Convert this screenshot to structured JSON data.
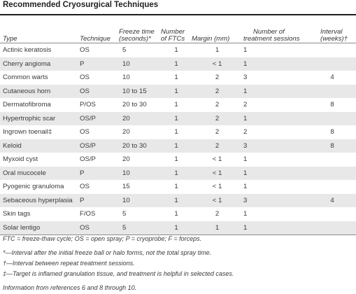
{
  "title": "Recommended Cryosurgical Techniques",
  "headers": {
    "type": "Type",
    "technique": "Technique",
    "freeze_line1": "Freeze time",
    "freeze_line2": "(seconds)*",
    "ftc_line1": "Number",
    "ftc_line2": "of FTCs",
    "margin": "Margin (mm)",
    "sessions_line1": "Number of",
    "sessions_line2": "treatment sessions",
    "interval_line1": "Interval",
    "interval_line2": "(weeks)†"
  },
  "rows": [
    {
      "type": "Actinic keratosis",
      "technique": "OS",
      "freeze": "5",
      "ftc": "1",
      "margin": "1",
      "sessions": "1",
      "interval": ""
    },
    {
      "type": "Cherry angioma",
      "technique": "P",
      "freeze": "10",
      "ftc": "1",
      "margin": "< 1",
      "sessions": "1",
      "interval": ""
    },
    {
      "type": "Common warts",
      "technique": "OS",
      "freeze": "10",
      "ftc": "1",
      "margin": "2",
      "sessions": "3",
      "interval": "4"
    },
    {
      "type": "Cutaneous horn",
      "technique": "OS",
      "freeze": "10 to 15",
      "ftc": "1",
      "margin": "2",
      "sessions": "1",
      "interval": ""
    },
    {
      "type": "Dermatofibroma",
      "technique": "P/OS",
      "freeze": "20 to 30",
      "ftc": "1",
      "margin": "2",
      "sessions": "2",
      "interval": "8"
    },
    {
      "type": "Hypertrophic scar",
      "technique": "OS/P",
      "freeze": "20",
      "ftc": "1",
      "margin": "2",
      "sessions": "1",
      "interval": ""
    },
    {
      "type": "Ingrown toenail‡",
      "technique": "OS",
      "freeze": "20",
      "ftc": "1",
      "margin": "2",
      "sessions": "2",
      "interval": "8"
    },
    {
      "type": "Keloid",
      "technique": "OS/P",
      "freeze": "20 to 30",
      "ftc": "1",
      "margin": "2",
      "sessions": "3",
      "interval": "8"
    },
    {
      "type": "Myxoid cyst",
      "technique": "OS/P",
      "freeze": "20",
      "ftc": "1",
      "margin": "< 1",
      "sessions": "1",
      "interval": ""
    },
    {
      "type": "Oral mucocele",
      "technique": "P",
      "freeze": "10",
      "ftc": "1",
      "margin": "< 1",
      "sessions": "1",
      "interval": ""
    },
    {
      "type": "Pyogenic granuloma",
      "technique": "OS",
      "freeze": "15",
      "ftc": "1",
      "margin": "< 1",
      "sessions": "1",
      "interval": ""
    },
    {
      "type": "Sebaceous hyperplasia",
      "technique": "P",
      "freeze": "10",
      "ftc": "1",
      "margin": "< 1",
      "sessions": "3",
      "interval": "4"
    },
    {
      "type": "Skin tags",
      "technique": "F/OS",
      "freeze": "5",
      "ftc": "1",
      "margin": "2",
      "sessions": "1",
      "interval": ""
    },
    {
      "type": "Solar lentigo",
      "technique": "OS",
      "freeze": "5",
      "ftc": "1",
      "margin": "1",
      "sessions": "1",
      "interval": ""
    }
  ],
  "footnotes": [
    "FTC = freeze-thaw cycle; OS = open spray; P = cryoprobe; F = forceps.",
    "*—Interval after the initial freeze ball or halo forms, not the total spray time.",
    "†—Interval between repeat treatment sessions.",
    "‡—Target is inflamed granulation tissue, and treatment is helpful in selected cases.",
    "Information from references 6 and 8 through 10."
  ]
}
